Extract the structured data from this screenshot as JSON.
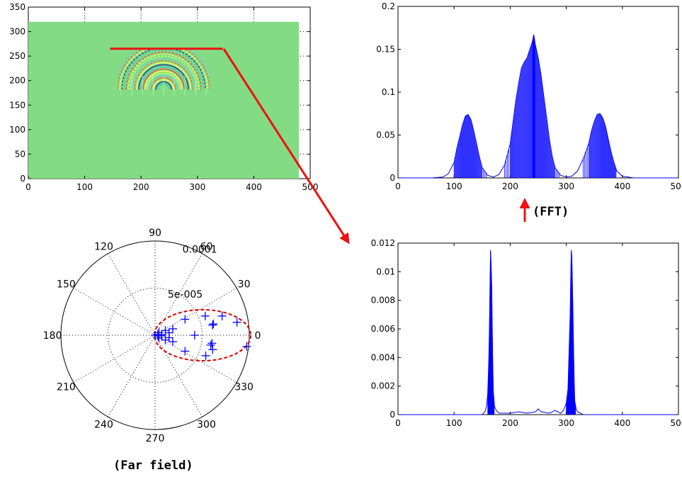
{
  "colors": {
    "line": "#0000ff",
    "field": "#83dc83",
    "arrow": "#ee1111",
    "ellipse": "#dd0000",
    "grid": "#000000"
  },
  "captions": {
    "fft": "(FFT)",
    "far_field": "(Far field)"
  },
  "chart_data": [
    {
      "id": "wavefield",
      "type": "heatmap",
      "title": "",
      "xlabel": "",
      "ylabel": "",
      "xlim": [
        0,
        500
      ],
      "ylim": [
        0,
        350
      ],
      "xticks": [
        "0",
        "100",
        "200",
        "300",
        "400",
        "500"
      ],
      "yticks": [
        "0",
        "50",
        "100",
        "150",
        "200",
        "250",
        "300",
        "350"
      ],
      "grid": true,
      "field_extent": {
        "x": [
          0,
          480
        ],
        "y": [
          0,
          320
        ]
      },
      "receiver_line": {
        "x": [
          145,
          345
        ],
        "y": [
          265,
          265
        ]
      },
      "source_center": {
        "x": 240,
        "y": 225
      }
    },
    {
      "id": "fft_spectrum",
      "type": "line",
      "title": "",
      "xlabel": "",
      "ylabel": "",
      "xlim": [
        0,
        500
      ],
      "ylim": [
        0,
        0.2
      ],
      "xticks": [
        "0",
        "100",
        "200",
        "300",
        "400",
        "500"
      ],
      "yticks": [
        "0",
        "0.05",
        "0.1",
        "0.15",
        "0.2"
      ],
      "grid": false,
      "x": [
        0,
        60,
        80,
        90,
        100,
        105,
        110,
        115,
        120,
        125,
        130,
        135,
        140,
        145,
        150,
        160,
        170,
        180,
        190,
        200,
        205,
        210,
        215,
        220,
        225,
        230,
        235,
        240,
        242,
        245,
        250,
        255,
        260,
        265,
        270,
        275,
        280,
        290,
        300,
        310,
        320,
        330,
        340,
        345,
        350,
        355,
        360,
        365,
        370,
        375,
        380,
        385,
        390,
        400,
        410,
        420,
        430,
        440,
        500
      ],
      "y": [
        0,
        0,
        0.001,
        0.005,
        0.018,
        0.035,
        0.048,
        0.062,
        0.072,
        0.074,
        0.068,
        0.055,
        0.04,
        0.025,
        0.012,
        0.003,
        0.001,
        0.004,
        0.015,
        0.04,
        0.065,
        0.09,
        0.11,
        0.128,
        0.135,
        0.14,
        0.15,
        0.16,
        0.167,
        0.155,
        0.14,
        0.12,
        0.095,
        0.07,
        0.045,
        0.025,
        0.012,
        0.003,
        0.001,
        0.002,
        0.008,
        0.022,
        0.04,
        0.055,
        0.066,
        0.074,
        0.075,
        0.07,
        0.06,
        0.045,
        0.03,
        0.018,
        0.008,
        0.002,
        0.001,
        0,
        0,
        0,
        0
      ]
    },
    {
      "id": "signal",
      "type": "line",
      "title": "",
      "xlabel": "",
      "ylabel": "",
      "xlim": [
        0,
        500
      ],
      "ylim": [
        0,
        0.012
      ],
      "xticks": [
        "0",
        "100",
        "200",
        "300",
        "400",
        "500"
      ],
      "yticks": [
        "0",
        "0.002",
        "0.004",
        "0.006",
        "0.008",
        "0.01",
        "0.012"
      ],
      "grid": false,
      "x": [
        0,
        120,
        150,
        155,
        158,
        160,
        162,
        163,
        164,
        165,
        166,
        167,
        168,
        169,
        170,
        172,
        175,
        180,
        200,
        215,
        230,
        245,
        250,
        255,
        270,
        280,
        285,
        290,
        295,
        300,
        303,
        305,
        307,
        308,
        309,
        310,
        311,
        312,
        313,
        314,
        315,
        317,
        320,
        325,
        330,
        360,
        500
      ],
      "y": [
        0,
        0,
        0,
        0.0002,
        0.0006,
        0.0015,
        0.004,
        0.006,
        0.009,
        0.0115,
        0.0105,
        0.009,
        0.006,
        0.0035,
        0.0016,
        0.0006,
        0.0003,
        0.0001,
        0.0001,
        0.0002,
        0.0001,
        0.0002,
        0.0004,
        0.0002,
        0.0001,
        0.0003,
        0.0002,
        0.0001,
        0.0003,
        0.0008,
        0.0018,
        0.0045,
        0.007,
        0.0095,
        0.0115,
        0.011,
        0.009,
        0.007,
        0.0045,
        0.0025,
        0.001,
        0.0005,
        0.0002,
        0.0001,
        0,
        0,
        0
      ]
    },
    {
      "id": "far_field",
      "type": "scatter",
      "coordinate_system": "polar",
      "title": "",
      "rlim": [
        0,
        0.0001
      ],
      "r_tick_labels": [
        "5e-005",
        "0.0001"
      ],
      "theta_tick_labels": [
        "0",
        "30",
        "60",
        "90",
        "120",
        "150",
        "180",
        "210",
        "240",
        "270",
        "300",
        "330"
      ],
      "marker": "+",
      "points": [
        {
          "theta": 0,
          "r": 0
        },
        {
          "theta": 15,
          "r": 3e-06
        },
        {
          "theta": -15,
          "r": 3e-06
        },
        {
          "theta": 35,
          "r": 5e-06
        },
        {
          "theta": -35,
          "r": 5e-06
        },
        {
          "theta": 5,
          "r": 7e-06
        },
        {
          "theta": -5,
          "r": 7e-06
        },
        {
          "theta": 25,
          "r": 1.2e-05
        },
        {
          "theta": -25,
          "r": 1.2e-05
        },
        {
          "theta": 10,
          "r": 1.5e-05
        },
        {
          "theta": -10,
          "r": 1.5e-05
        },
        {
          "theta": 20,
          "r": 2e-05
        },
        {
          "theta": -20,
          "r": 2e-05
        },
        {
          "theta": 28,
          "r": 3.6e-05
        },
        {
          "theta": -28,
          "r": 3.6e-05
        },
        {
          "theta": 0,
          "r": 4.2e-05
        },
        {
          "theta": 21,
          "r": 5.7e-05
        },
        {
          "theta": -22,
          "r": 5.8e-05
        },
        {
          "theta": 11,
          "r": 6.3e-05
        },
        {
          "theta": -8,
          "r": 6.1e-05
        },
        {
          "theta": 16,
          "r": 7.4e-05
        },
        {
          "theta": -14,
          "r": 6.3e-05
        },
        {
          "theta": 9,
          "r": 8.8e-05
        },
        {
          "theta": -7,
          "r": 9.8e-05
        },
        {
          "theta": 10,
          "r": 6.2e-05
        },
        {
          "theta": -10,
          "r": 6e-05
        }
      ]
    }
  ]
}
